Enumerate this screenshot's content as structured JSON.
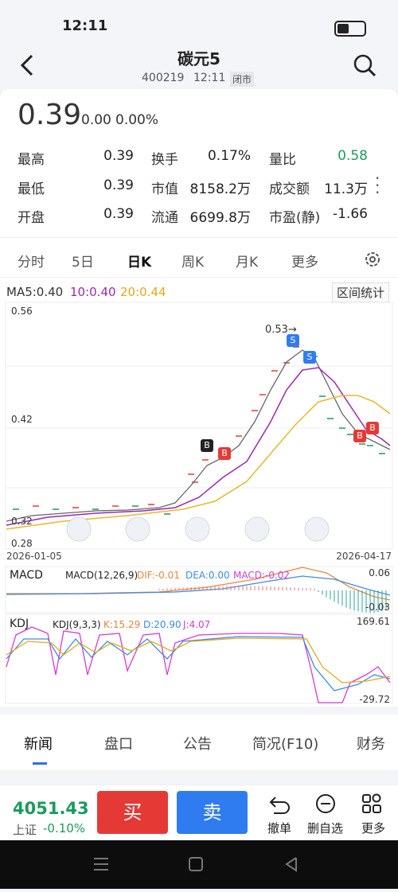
{
  "status_bar": {
    "time": "12:11"
  },
  "header": {
    "title": "碳元5",
    "code": "400219",
    "time": "12:11",
    "status": "闭市"
  },
  "quote": {
    "price": "0.39",
    "change": "0.00",
    "change_pct": "0.00%"
  },
  "stats": [
    [
      "最高",
      "0.39",
      "换手",
      "0.17%",
      "量比",
      "0.58"
    ],
    [
      "最低",
      "0.39",
      "市值",
      "8158.2万",
      "成交额",
      "11.3万"
    ],
    [
      "开盘",
      "0.39",
      "流通",
      "6699.8万",
      "市盈(静)",
      "-1.66"
    ]
  ],
  "chart_tabs": [
    "分时",
    "5日",
    "日K",
    "周K",
    "月K",
    "更多"
  ],
  "ma": {
    "ma5": "MA5:0.40",
    "ma10": "10:0.40",
    "ma20": "20:0.44",
    "range_button": "区间统计"
  },
  "kline": {
    "y_labels": [
      "0.56",
      "0.42",
      "0.32",
      "0.28"
    ],
    "high_marker": "0.53→",
    "signals": [
      "S",
      "S",
      "B",
      "B",
      "B",
      "B"
    ],
    "start_date": "2026-01-05",
    "end_date": "2026-04-17"
  },
  "macd": {
    "name": "MACD",
    "params": "MACD(12,26,9)",
    "dif": "DIF:-0.01",
    "dea": "DEA:0.00",
    "macd": "MACD:-0.02",
    "max": "0.06",
    "min": "-0.03"
  },
  "kdj": {
    "name": "KDJ",
    "params": "KDJ(9,3,3)",
    "k": "K:15.29",
    "d": "D:20.90",
    "j": "J:4.07",
    "max": "169.61",
    "min": "-29.72"
  },
  "news_tabs": [
    "新闻",
    "盘口",
    "公告",
    "简况(F10)",
    "财务"
  ],
  "bottom_bar": {
    "index_value": "4051.43",
    "index_name": "上证",
    "index_change": "-0.10%",
    "buy": "买",
    "sell": "卖",
    "actions": [
      "撤单",
      "删自选",
      "更多"
    ]
  }
}
